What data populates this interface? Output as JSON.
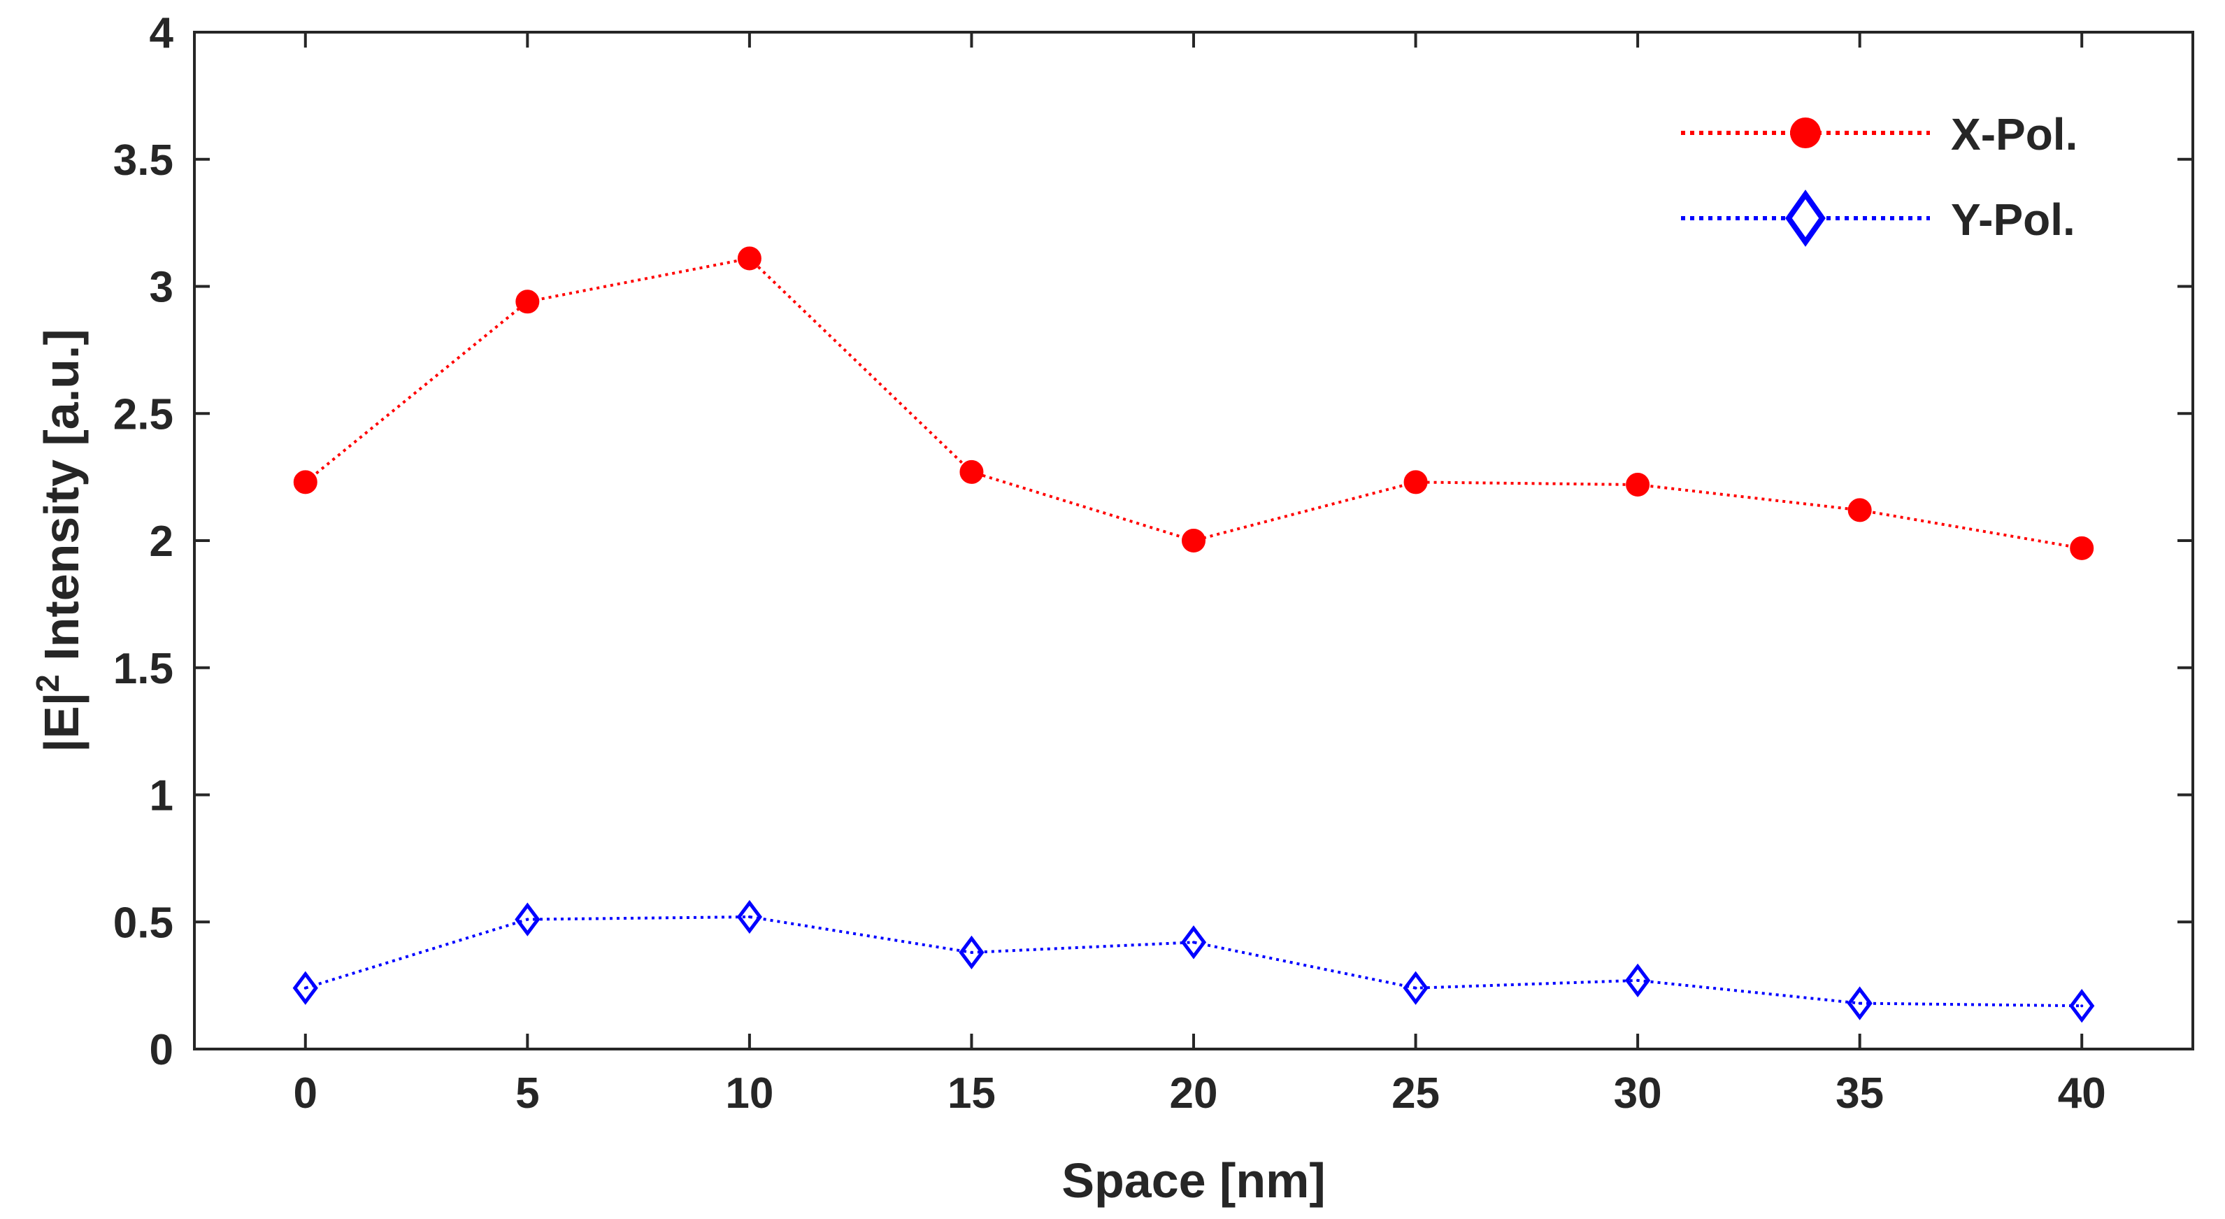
{
  "chart_data": {
    "type": "line",
    "title": "",
    "xlabel": "Space [nm]",
    "ylabel": {
      "prefix": "|E|",
      "superscript": "2",
      "suffix": " Intensity [a.u.]"
    },
    "xlim": [
      -2.5,
      42.5
    ],
    "ylim": [
      0,
      4
    ],
    "x": [
      0,
      5,
      10,
      15,
      20,
      25,
      30,
      35,
      40
    ],
    "xticks": [
      "0",
      "5",
      "10",
      "15",
      "20",
      "25",
      "30",
      "35",
      "40"
    ],
    "yticks": [
      "0",
      "0.5",
      "1",
      "1.5",
      "2",
      "2.5",
      "3",
      "3.5",
      "4"
    ],
    "legend_position": "top-right",
    "series": [
      {
        "name": "X-Pol.",
        "color": "#ff0000",
        "marker": "filled-circle",
        "linestyle": "dotted",
        "values": [
          2.23,
          2.94,
          3.11,
          2.27,
          2.0,
          2.23,
          2.22,
          2.12,
          1.97
        ]
      },
      {
        "name": "Y-Pol.",
        "color": "#0000ff",
        "marker": "open-diamond",
        "linestyle": "dotted",
        "values": [
          0.24,
          0.51,
          0.52,
          0.38,
          0.42,
          0.24,
          0.27,
          0.18,
          0.17
        ]
      }
    ]
  }
}
